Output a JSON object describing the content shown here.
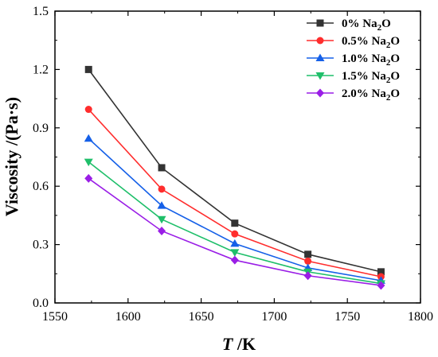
{
  "chart_data": {
    "type": "line",
    "title": "",
    "xlabel_italic": "T",
    "xlabel_rest": " /K",
    "ylabel": "Viscosity /(Pa·s)",
    "xlim": [
      1550,
      1800
    ],
    "ylim": [
      0.0,
      1.5
    ],
    "x_ticks": [
      1550,
      1600,
      1650,
      1700,
      1750,
      1800
    ],
    "y_ticks": [
      "0.0",
      "0.3",
      "0.6",
      "0.9",
      "1.2",
      "1.5"
    ],
    "grid": false,
    "legend_position": "top-right",
    "x": [
      1573,
      1623,
      1673,
      1723,
      1773
    ],
    "series": [
      {
        "name": "0% Na2O",
        "label_main": "0% Na",
        "label_sub": "2",
        "label_tail": "O",
        "color": "#333333",
        "marker": "square",
        "values": [
          1.2,
          0.695,
          0.41,
          0.25,
          0.16
        ]
      },
      {
        "name": "0.5% Na2O",
        "label_main": "0.5% Na",
        "label_sub": "2",
        "label_tail": "O",
        "color": "#ff2d2d",
        "marker": "circle",
        "values": [
          0.995,
          0.585,
          0.355,
          0.215,
          0.135
        ]
      },
      {
        "name": "1.0% Na2O",
        "label_main": "1.0% Na",
        "label_sub": "2",
        "label_tail": "O",
        "color": "#1560e8",
        "marker": "triangle-up",
        "values": [
          0.845,
          0.5,
          0.305,
          0.18,
          0.115
        ]
      },
      {
        "name": "1.5% Na2O",
        "label_main": "1.5% Na",
        "label_sub": "2",
        "label_tail": "O",
        "color": "#1fbf6a",
        "marker": "triangle-down",
        "values": [
          0.725,
          0.43,
          0.26,
          0.16,
          0.1
        ]
      },
      {
        "name": "2.0% Na2O",
        "label_main": "2.0% Na",
        "label_sub": "2",
        "label_tail": "O",
        "color": "#9a1ee6",
        "marker": "diamond",
        "values": [
          0.64,
          0.37,
          0.22,
          0.14,
          0.09
        ]
      }
    ]
  }
}
